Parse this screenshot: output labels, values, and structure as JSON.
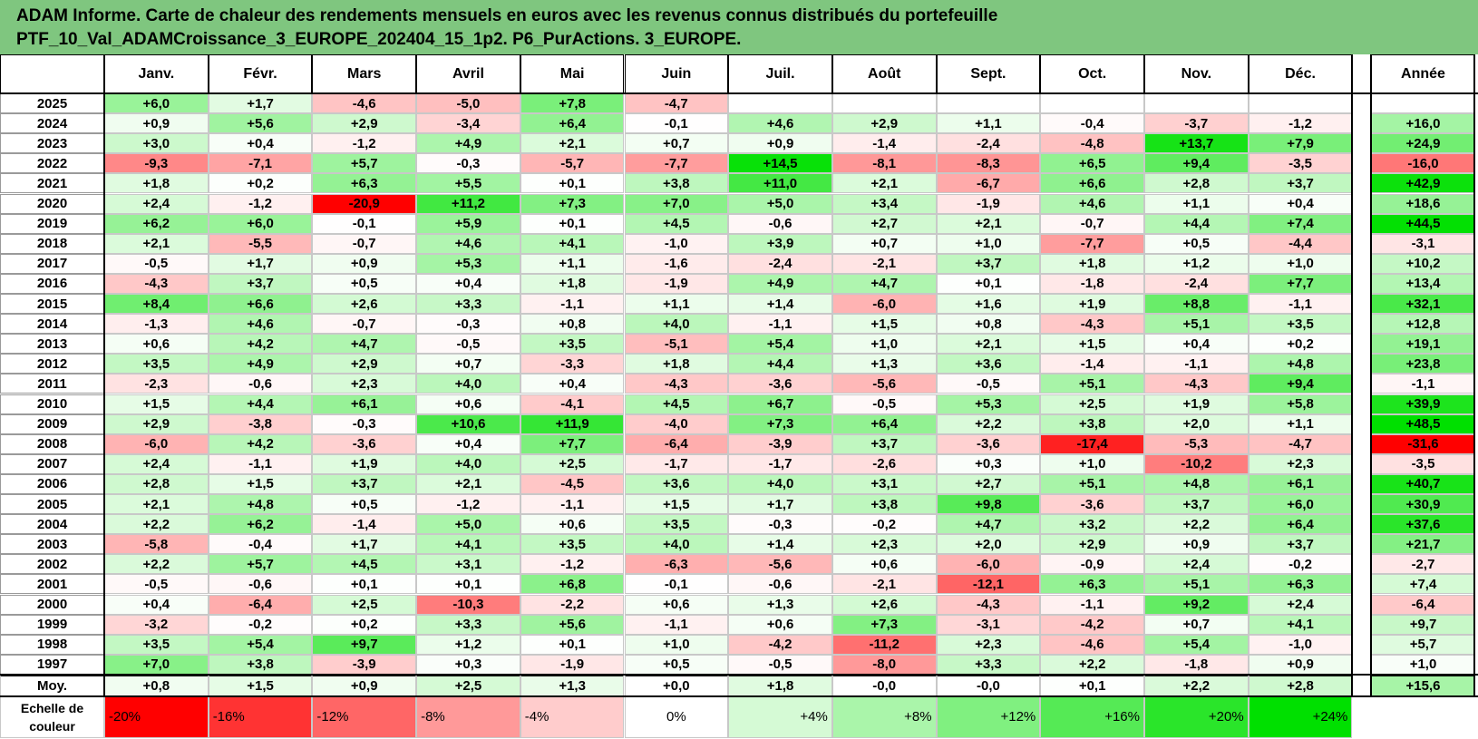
{
  "title_lines": [
    "ADAM Informe. Carte de chaleur des rendements mensuels en euros avec les revenus connus distribués du portefeuille",
    "PTF_10_Val_ADAMCroissance_3_EUROPE_202404_15_1p2. P6_PurActions. 3_EUROPE."
  ],
  "colors": {
    "title_bg": "#7fc67f",
    "neg_max": "#ff0000",
    "pos_max": "#00e000",
    "neutral": "#ffffff"
  },
  "chart_data": {
    "type": "heatmap",
    "columns": [
      "Janv.",
      "Févr.",
      "Mars",
      "Avril",
      "Mai",
      "Juin",
      "Juil.",
      "Août",
      "Sept.",
      "Oct.",
      "Nov.",
      "Déc."
    ],
    "year_header": "Année",
    "color_range": [
      -20,
      24
    ],
    "rows": [
      {
        "label": "2025",
        "values": [
          "+6,0",
          "+1,7",
          "-4,6",
          "-5,0",
          "+7,8",
          "-4,7",
          "",
          "",
          "",
          "",
          "",
          ""
        ],
        "year": ""
      },
      {
        "label": "2024",
        "values": [
          "+0,9",
          "+5,6",
          "+2,9",
          "-3,4",
          "+6,4",
          "-0,1",
          "+4,6",
          "+2,9",
          "+1,1",
          "-0,4",
          "-3,7",
          "-1,2"
        ],
        "year": "+16,0"
      },
      {
        "label": "2023",
        "values": [
          "+3,0",
          "+0,4",
          "-1,2",
          "+4,9",
          "+2,1",
          "+0,7",
          "+0,9",
          "-1,4",
          "-2,4",
          "-4,8",
          "+13,7",
          "+7,9"
        ],
        "year": "+24,9"
      },
      {
        "label": "2022",
        "values": [
          "-9,3",
          "-7,1",
          "+5,7",
          "-0,3",
          "-5,7",
          "-7,7",
          "+14,5",
          "-8,1",
          "-8,3",
          "+6,5",
          "+9,4",
          "-3,5"
        ],
        "year": "-16,0"
      },
      {
        "label": "2021",
        "values": [
          "+1,8",
          "+0,2",
          "+6,3",
          "+5,5",
          "+0,1",
          "+3,8",
          "+11,0",
          "+2,1",
          "-6,7",
          "+6,6",
          "+2,8",
          "+3,7"
        ],
        "year": "+42,9"
      },
      {
        "label": "2020",
        "values": [
          "+2,4",
          "-1,2",
          "-20,9",
          "+11,2",
          "+7,3",
          "+7,0",
          "+5,0",
          "+3,4",
          "-1,9",
          "+4,6",
          "+1,1",
          "+0,4"
        ],
        "year": "+18,6"
      },
      {
        "label": "2019",
        "values": [
          "+6,2",
          "+6,0",
          "-0,1",
          "+5,9",
          "+0,1",
          "+4,5",
          "-0,6",
          "+2,7",
          "+2,1",
          "-0,7",
          "+4,4",
          "+7,4"
        ],
        "year": "+44,5"
      },
      {
        "label": "2018",
        "values": [
          "+2,1",
          "-5,5",
          "-0,7",
          "+4,6",
          "+4,1",
          "-1,0",
          "+3,9",
          "+0,7",
          "+1,0",
          "-7,7",
          "+0,5",
          "-4,4"
        ],
        "year": "-3,1"
      },
      {
        "label": "2017",
        "values": [
          "-0,5",
          "+1,7",
          "+0,9",
          "+5,3",
          "+1,1",
          "-1,6",
          "-2,4",
          "-2,1",
          "+3,7",
          "+1,8",
          "+1,2",
          "+1,0"
        ],
        "year": "+10,2"
      },
      {
        "label": "2016",
        "values": [
          "-4,3",
          "+3,7",
          "+0,5",
          "+0,4",
          "+1,8",
          "-1,9",
          "+4,9",
          "+4,7",
          "+0,1",
          "-1,8",
          "-2,4",
          "+7,7"
        ],
        "year": "+13,4"
      },
      {
        "label": "2015",
        "values": [
          "+8,4",
          "+6,6",
          "+2,6",
          "+3,3",
          "-1,1",
          "+1,1",
          "+1,4",
          "-6,0",
          "+1,6",
          "+1,9",
          "+8,8",
          "-1,1"
        ],
        "year": "+32,1"
      },
      {
        "label": "2014",
        "values": [
          "-1,3",
          "+4,6",
          "-0,7",
          "-0,3",
          "+0,8",
          "+4,0",
          "-1,1",
          "+1,5",
          "+0,8",
          "-4,3",
          "+5,1",
          "+3,5"
        ],
        "year": "+12,8"
      },
      {
        "label": "2013",
        "values": [
          "+0,6",
          "+4,2",
          "+4,7",
          "-0,5",
          "+3,5",
          "-5,1",
          "+5,4",
          "+1,0",
          "+2,1",
          "+1,5",
          "+0,4",
          "+0,2"
        ],
        "year": "+19,1"
      },
      {
        "label": "2012",
        "values": [
          "+3,5",
          "+4,9",
          "+2,9",
          "+0,7",
          "-3,3",
          "+1,8",
          "+4,4",
          "+1,3",
          "+3,6",
          "-1,4",
          "-1,1",
          "+4,8"
        ],
        "year": "+23,8"
      },
      {
        "label": "2011",
        "values": [
          "-2,3",
          "-0,6",
          "+2,3",
          "+4,0",
          "+0,4",
          "-4,3",
          "-3,6",
          "-5,6",
          "-0,5",
          "+5,1",
          "-4,3",
          "+9,4"
        ],
        "year": "-1,1"
      },
      {
        "label": "2010",
        "values": [
          "+1,5",
          "+4,4",
          "+6,1",
          "+0,6",
          "-4,1",
          "+4,5",
          "+6,7",
          "-0,5",
          "+5,3",
          "+2,5",
          "+1,9",
          "+5,8"
        ],
        "year": "+39,9"
      },
      {
        "label": "2009",
        "values": [
          "+2,9",
          "-3,8",
          "-0,3",
          "+10,6",
          "+11,9",
          "-4,0",
          "+7,3",
          "+6,4",
          "+2,2",
          "+3,8",
          "+2,0",
          "+1,1"
        ],
        "year": "+48,5"
      },
      {
        "label": "2008",
        "values": [
          "-6,0",
          "+4,2",
          "-3,6",
          "+0,4",
          "+7,7",
          "-6,4",
          "-3,9",
          "+3,7",
          "-3,6",
          "-17,4",
          "-5,3",
          "-4,7"
        ],
        "year": "-31,6"
      },
      {
        "label": "2007",
        "values": [
          "+2,4",
          "-1,1",
          "+1,9",
          "+4,0",
          "+2,5",
          "-1,7",
          "-1,7",
          "-2,6",
          "+0,3",
          "+1,0",
          "-10,2",
          "+2,3"
        ],
        "year": "-3,5"
      },
      {
        "label": "2006",
        "values": [
          "+2,8",
          "+1,5",
          "+3,7",
          "+2,1",
          "-4,5",
          "+3,6",
          "+4,0",
          "+3,1",
          "+2,7",
          "+5,1",
          "+4,8",
          "+6,1"
        ],
        "year": "+40,7"
      },
      {
        "label": "2005",
        "values": [
          "+2,1",
          "+4,8",
          "+0,5",
          "-1,2",
          "-1,1",
          "+1,5",
          "+1,7",
          "+3,8",
          "+9,8",
          "-3,6",
          "+3,7",
          "+6,0"
        ],
        "year": "+30,9"
      },
      {
        "label": "2004",
        "values": [
          "+2,2",
          "+6,2",
          "-1,4",
          "+5,0",
          "+0,6",
          "+3,5",
          "-0,3",
          "-0,2",
          "+4,7",
          "+3,2",
          "+2,2",
          "+6,4"
        ],
        "year": "+37,6"
      },
      {
        "label": "2003",
        "values": [
          "-5,8",
          "-0,4",
          "+1,7",
          "+4,1",
          "+3,5",
          "+4,0",
          "+1,4",
          "+2,3",
          "+2,0",
          "+2,9",
          "+0,9",
          "+3,7"
        ],
        "year": "+21,7"
      },
      {
        "label": "2002",
        "values": [
          "+2,2",
          "+5,7",
          "+4,5",
          "+3,1",
          "-1,2",
          "-6,3",
          "-5,6",
          "+0,6",
          "-6,0",
          "-0,9",
          "+2,4",
          "-0,2"
        ],
        "year": "-2,7"
      },
      {
        "label": "2001",
        "values": [
          "-0,5",
          "-0,6",
          "+0,1",
          "+0,1",
          "+6,8",
          "-0,1",
          "-0,6",
          "-2,1",
          "-12,1",
          "+6,3",
          "+5,1",
          "+6,3"
        ],
        "year": "+7,4"
      },
      {
        "label": "2000",
        "values": [
          "+0,4",
          "-6,4",
          "+2,5",
          "-10,3",
          "-2,2",
          "+0,6",
          "+1,3",
          "+2,6",
          "-4,3",
          "-1,1",
          "+9,2",
          "+2,4"
        ],
        "year": "-6,4"
      },
      {
        "label": "1999",
        "values": [
          "-3,2",
          "-0,2",
          "+0,2",
          "+3,3",
          "+5,6",
          "-1,1",
          "+0,6",
          "+7,3",
          "-3,1",
          "-4,2",
          "+0,7",
          "+4,1"
        ],
        "year": "+9,7"
      },
      {
        "label": "1998",
        "values": [
          "+3,5",
          "+5,4",
          "+9,7",
          "+1,2",
          "+0,1",
          "+1,0",
          "-4,2",
          "-11,2",
          "+2,3",
          "-4,6",
          "+5,4",
          "-1,0"
        ],
        "year": "+5,7"
      },
      {
        "label": "1997",
        "values": [
          "+7,0",
          "+3,8",
          "-3,9",
          "+0,3",
          "-1,9",
          "+0,5",
          "-0,5",
          "-8,0",
          "+3,3",
          "+2,2",
          "-1,8",
          "+0,9"
        ],
        "year": "+1,0"
      }
    ],
    "average_row": {
      "label": "Moy.",
      "values": [
        "+0,8",
        "+1,5",
        "+0,9",
        "+2,5",
        "+1,3",
        "+0,0",
        "+1,8",
        "-0,0",
        "-0,0",
        "+0,1",
        "+2,2",
        "+2,8"
      ],
      "year": "+15,6"
    },
    "scale": {
      "label_line1": "Echelle de",
      "label_line2": "couleur",
      "steps": [
        {
          "value": -20,
          "label": "-20%"
        },
        {
          "value": -16,
          "label": "-16%"
        },
        {
          "value": -12,
          "label": "-12%"
        },
        {
          "value": -8,
          "label": "-8%"
        },
        {
          "value": -4,
          "label": "-4%"
        },
        {
          "value": 0,
          "label": "0%"
        },
        {
          "value": 4,
          "label": "+4%"
        },
        {
          "value": 8,
          "label": "+8%"
        },
        {
          "value": 12,
          "label": "+12%"
        },
        {
          "value": 16,
          "label": "+16%"
        },
        {
          "value": 20,
          "label": "+20%"
        },
        {
          "value": 24,
          "label": "+24%"
        }
      ]
    }
  }
}
